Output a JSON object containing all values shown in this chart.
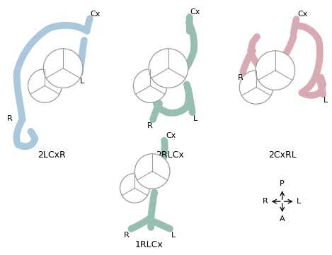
{
  "bg_color": "#ffffff",
  "c1": "#aac8dc",
  "c2": "#96bfb2",
  "c3": "#d8aab4",
  "lw": 7,
  "circle_edge": "#999999",
  "circle_fill": "#ffffff",
  "fs_label": 8,
  "fs_title": 9,
  "labels": [
    "2LCxR",
    "2RLCx",
    "2CxRL",
    "1RLCx"
  ],
  "compass_labels": [
    "P",
    "A",
    "R",
    "L"
  ]
}
